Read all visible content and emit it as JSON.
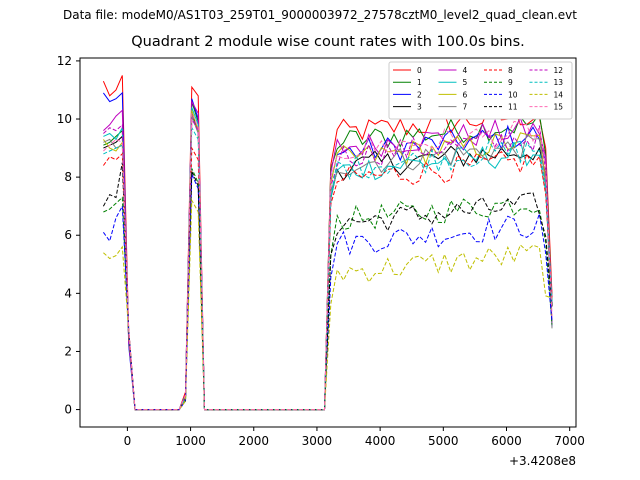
{
  "figure": {
    "suptitle": "Data file: modeM0/AS1T03_259T01_9000003972_27578cztM0_level2_quad_clean.evt",
    "title": "Quadrant 2 module wise count rates with 100.0s bins."
  },
  "chart_data": {
    "type": "line",
    "title": "Quadrant 2 module wise count rates with 100.0s bins.",
    "xlabel": "",
    "ylabel": "",
    "x_offset_label": "+3.4208e8",
    "xlim": [
      -750,
      7100
    ],
    "ylim": [
      -0.6,
      12.1
    ],
    "xticks": [
      0,
      1000,
      2000,
      3000,
      4000,
      5000,
      6000,
      7000
    ],
    "yticks": [
      0,
      2,
      4,
      6,
      8,
      10,
      12
    ],
    "xtick_labels": [
      "0",
      "1000",
      "2000",
      "3000",
      "4000",
      "5000",
      "6000",
      "7000"
    ],
    "ytick_labels": [
      "0",
      "2",
      "4",
      "6",
      "8",
      "10",
      "12"
    ],
    "grid": false,
    "legend_position": "top-right",
    "legend_columns": 4,
    "series": [
      {
        "name": "0",
        "color": "#ff0000",
        "dash": "solid",
        "start": [
          11.3,
          10.8,
          11.0,
          11.5
        ],
        "peak": [
          0.6,
          11.1,
          10.8
        ],
        "level": 9.5
      },
      {
        "name": "1",
        "color": "#008000",
        "dash": "solid",
        "start": [
          9.1,
          9.2,
          9.4,
          9.6
        ],
        "peak": [
          0.5,
          10.6,
          9.9
        ],
        "level": 9.2
      },
      {
        "name": "2",
        "color": "#0000ff",
        "dash": "solid",
        "start": [
          10.9,
          10.6,
          10.7,
          10.9
        ],
        "peak": [
          0.5,
          10.7,
          10.0
        ],
        "level": 8.8
      },
      {
        "name": "3",
        "color": "#000000",
        "dash": "solid",
        "start": [
          9.0,
          9.1,
          9.2,
          9.4
        ],
        "peak": [
          0.4,
          10.2,
          9.6
        ],
        "level": 8.3
      },
      {
        "name": "4",
        "color": "#bf00bf",
        "dash": "solid",
        "start": [
          9.6,
          9.8,
          10.1,
          10.3
        ],
        "peak": [
          0.5,
          10.6,
          10.2
        ],
        "level": 9.0
      },
      {
        "name": "5",
        "color": "#00bfbf",
        "dash": "solid",
        "start": [
          9.4,
          9.5,
          9.3,
          9.7
        ],
        "peak": [
          0.5,
          10.4,
          9.8
        ],
        "level": 8.2
      },
      {
        "name": "6",
        "color": "#bfbf00",
        "dash": "solid",
        "start": [
          9.3,
          9.0,
          8.9,
          9.2
        ],
        "peak": [
          0.4,
          10.3,
          9.6
        ],
        "level": 8.6
      },
      {
        "name": "7",
        "color": "#808080",
        "dash": "solid",
        "start": [
          9.2,
          9.3,
          9.0,
          9.1
        ],
        "peak": [
          0.4,
          10.1,
          9.5
        ],
        "level": 8.4
      },
      {
        "name": "8",
        "color": "#ff0000",
        "dash": "dashed",
        "start": [
          8.4,
          8.7,
          8.6,
          8.8
        ],
        "peak": [
          0.4,
          9.0,
          8.6
        ],
        "level": 7.9
      },
      {
        "name": "9",
        "color": "#008000",
        "dash": "dashed",
        "start": [
          6.8,
          6.9,
          7.1,
          7.3
        ],
        "peak": [
          0.4,
          8.3,
          7.8
        ],
        "level": 6.5
      },
      {
        "name": "10",
        "color": "#0000ff",
        "dash": "dashed",
        "start": [
          6.1,
          5.8,
          6.6,
          7.0
        ],
        "peak": [
          0.3,
          8.1,
          7.6
        ],
        "level": 5.7
      },
      {
        "name": "11",
        "color": "#000000",
        "dash": "dashed",
        "start": [
          7.0,
          7.4,
          7.3,
          8.5
        ],
        "peak": [
          0.3,
          8.2,
          7.7
        ],
        "level": 6.4
      },
      {
        "name": "12",
        "color": "#bf00bf",
        "dash": "dashed",
        "start": [
          9.5,
          9.7,
          9.6,
          9.8
        ],
        "peak": [
          0.5,
          10.0,
          9.6
        ],
        "level": 8.7
      },
      {
        "name": "13",
        "color": "#00bfbf",
        "dash": "dashed",
        "start": [
          8.8,
          8.9,
          9.0,
          9.1
        ],
        "peak": [
          0.4,
          9.7,
          9.3
        ],
        "level": 8.3
      },
      {
        "name": "14",
        "color": "#bfbf00",
        "dash": "dashed",
        "start": [
          5.4,
          5.2,
          5.3,
          5.6
        ],
        "peak": [
          0.3,
          7.2,
          6.8
        ],
        "level": 4.7
      },
      {
        "name": "15",
        "color": "#ff69b4",
        "dash": "dashed",
        "start": [
          8.9,
          9.1,
          9.3,
          9.2
        ],
        "peak": [
          0.5,
          10.2,
          9.7
        ],
        "level": 8.9
      }
    ]
  }
}
